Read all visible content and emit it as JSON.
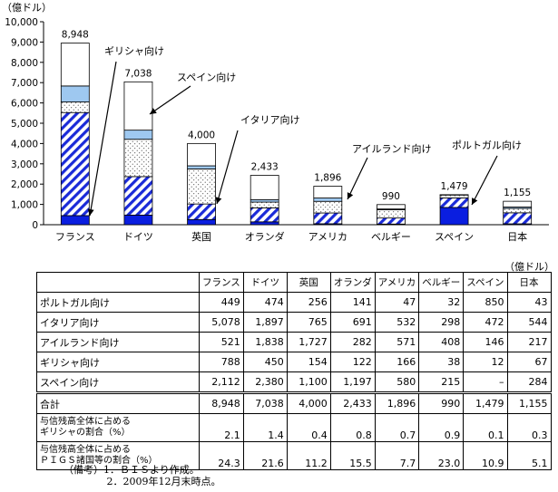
{
  "chart_data": {
    "type": "bar",
    "stacked": true,
    "unit": "（億ドル）",
    "ylim": [
      0,
      10000
    ],
    "yticks": [
      "0",
      "1,000",
      "2,000",
      "3,000",
      "4,000",
      "5,000",
      "6,000",
      "7,000",
      "8,000",
      "9,000",
      "10,000"
    ],
    "categories": [
      "フランス",
      "ドイツ",
      "英国",
      "オランダ",
      "アメリカ",
      "ベルギー",
      "スペイン",
      "日本"
    ],
    "totals": [
      "8,948",
      "7,038",
      "4,000",
      "2,433",
      "1,896",
      "990",
      "1,479",
      "1,155"
    ],
    "series": [
      {
        "name": "スペイン向け",
        "values": [
          2112,
          2380,
          1100,
          1197,
          580,
          215,
          0,
          284
        ],
        "fill": "#ffffff"
      },
      {
        "name": "ギリシャ向け",
        "values": [
          788,
          450,
          154,
          122,
          166,
          38,
          12,
          67
        ],
        "fill": "#9ec8f0"
      },
      {
        "name": "アイルランド向け",
        "values": [
          521,
          1838,
          1727,
          282,
          571,
          408,
          146,
          217
        ],
        "fill": "dots"
      },
      {
        "name": "イタリア向け",
        "values": [
          5078,
          1897,
          765,
          691,
          532,
          298,
          472,
          544
        ],
        "fill": "hatch"
      },
      {
        "name": "ポルトガル向け",
        "values": [
          449,
          474,
          256,
          141,
          47,
          32,
          850,
          43
        ],
        "fill": "#0a1ee0"
      }
    ],
    "callouts": [
      "ギリシャ向け",
      "スペイン向け",
      "イタリア向け",
      "アイルランド向け",
      "ポルトガル向け"
    ]
  },
  "table": {
    "unit": "（億ドル）",
    "headers": [
      "フランス",
      "ドイツ",
      "英国",
      "オランダ",
      "アメリカ",
      "ベルギー",
      "スペイン",
      "日本"
    ],
    "rows": [
      {
        "label": "ポルトガル向け",
        "values": [
          "449",
          "474",
          "256",
          "141",
          "47",
          "32",
          "850",
          "43"
        ]
      },
      {
        "label": "イタリア向け",
        "values": [
          "5,078",
          "1,897",
          "765",
          "691",
          "532",
          "298",
          "472",
          "544"
        ]
      },
      {
        "label": "アイルランド向け",
        "values": [
          "521",
          "1,838",
          "1,727",
          "282",
          "571",
          "408",
          "146",
          "217"
        ]
      },
      {
        "label": "ギリシャ向け",
        "values": [
          "788",
          "450",
          "154",
          "122",
          "166",
          "38",
          "12",
          "67"
        ]
      },
      {
        "label": "スペイン向け",
        "values": [
          "2,112",
          "2,380",
          "1,100",
          "1,197",
          "580",
          "215",
          "–",
          "284"
        ]
      }
    ],
    "total": {
      "label": "合計",
      "values": [
        "8,948",
        "7,038",
        "4,000",
        "2,433",
        "1,896",
        "990",
        "1,479",
        "1,155"
      ]
    },
    "ratio_rows": [
      {
        "label_line1": "与信残高全体に占める",
        "label_line2": "ギリシャの割合（%）",
        "values": [
          "2.1",
          "1.4",
          "0.4",
          "0.8",
          "0.7",
          "0.9",
          "0.1",
          "0.3"
        ]
      },
      {
        "label_line1": "与信残高全体に占める",
        "label_line2": "ＰＩＧＳ諸国等の割合（%）",
        "values": [
          "24.3",
          "21.6",
          "11.2",
          "15.5",
          "7.7",
          "23.0",
          "10.9",
          "5.1"
        ]
      }
    ]
  },
  "notes": [
    "（備考）1．ＢＩＳより作成。",
    "　　　　 2．2009年12月末時点。"
  ]
}
